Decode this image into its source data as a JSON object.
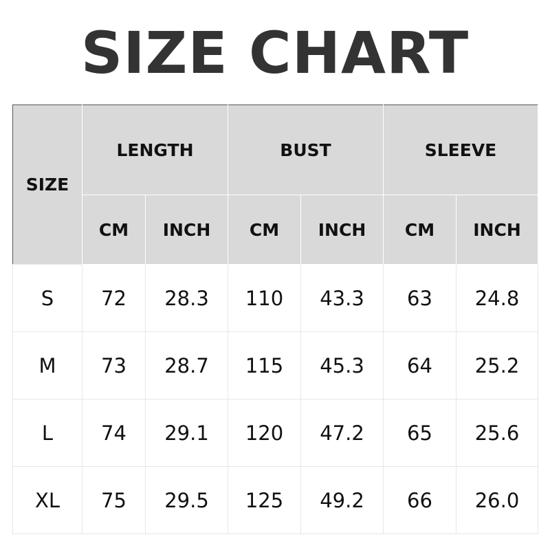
{
  "title": "SIZE CHART",
  "table": {
    "size_header": "SIZE",
    "groups": [
      "LENGTH",
      "BUST",
      "SLEEVE"
    ],
    "units": [
      "CM",
      "INCH",
      "CM",
      "INCH",
      "CM",
      "INCH"
    ],
    "rows": [
      [
        "S",
        "72",
        "28.3",
        "110",
        "43.3",
        "63",
        "24.8"
      ],
      [
        "M",
        "73",
        "28.7",
        "115",
        "45.3",
        "64",
        "25.2"
      ],
      [
        "L",
        "74",
        "29.1",
        "120",
        "47.2",
        "65",
        "25.6"
      ],
      [
        "XL",
        "75",
        "29.5",
        "125",
        "49.2",
        "66",
        "26.0"
      ]
    ]
  },
  "colors": {
    "header_bg": "#d9d9d9",
    "title": "#333333",
    "border": "#555555"
  }
}
